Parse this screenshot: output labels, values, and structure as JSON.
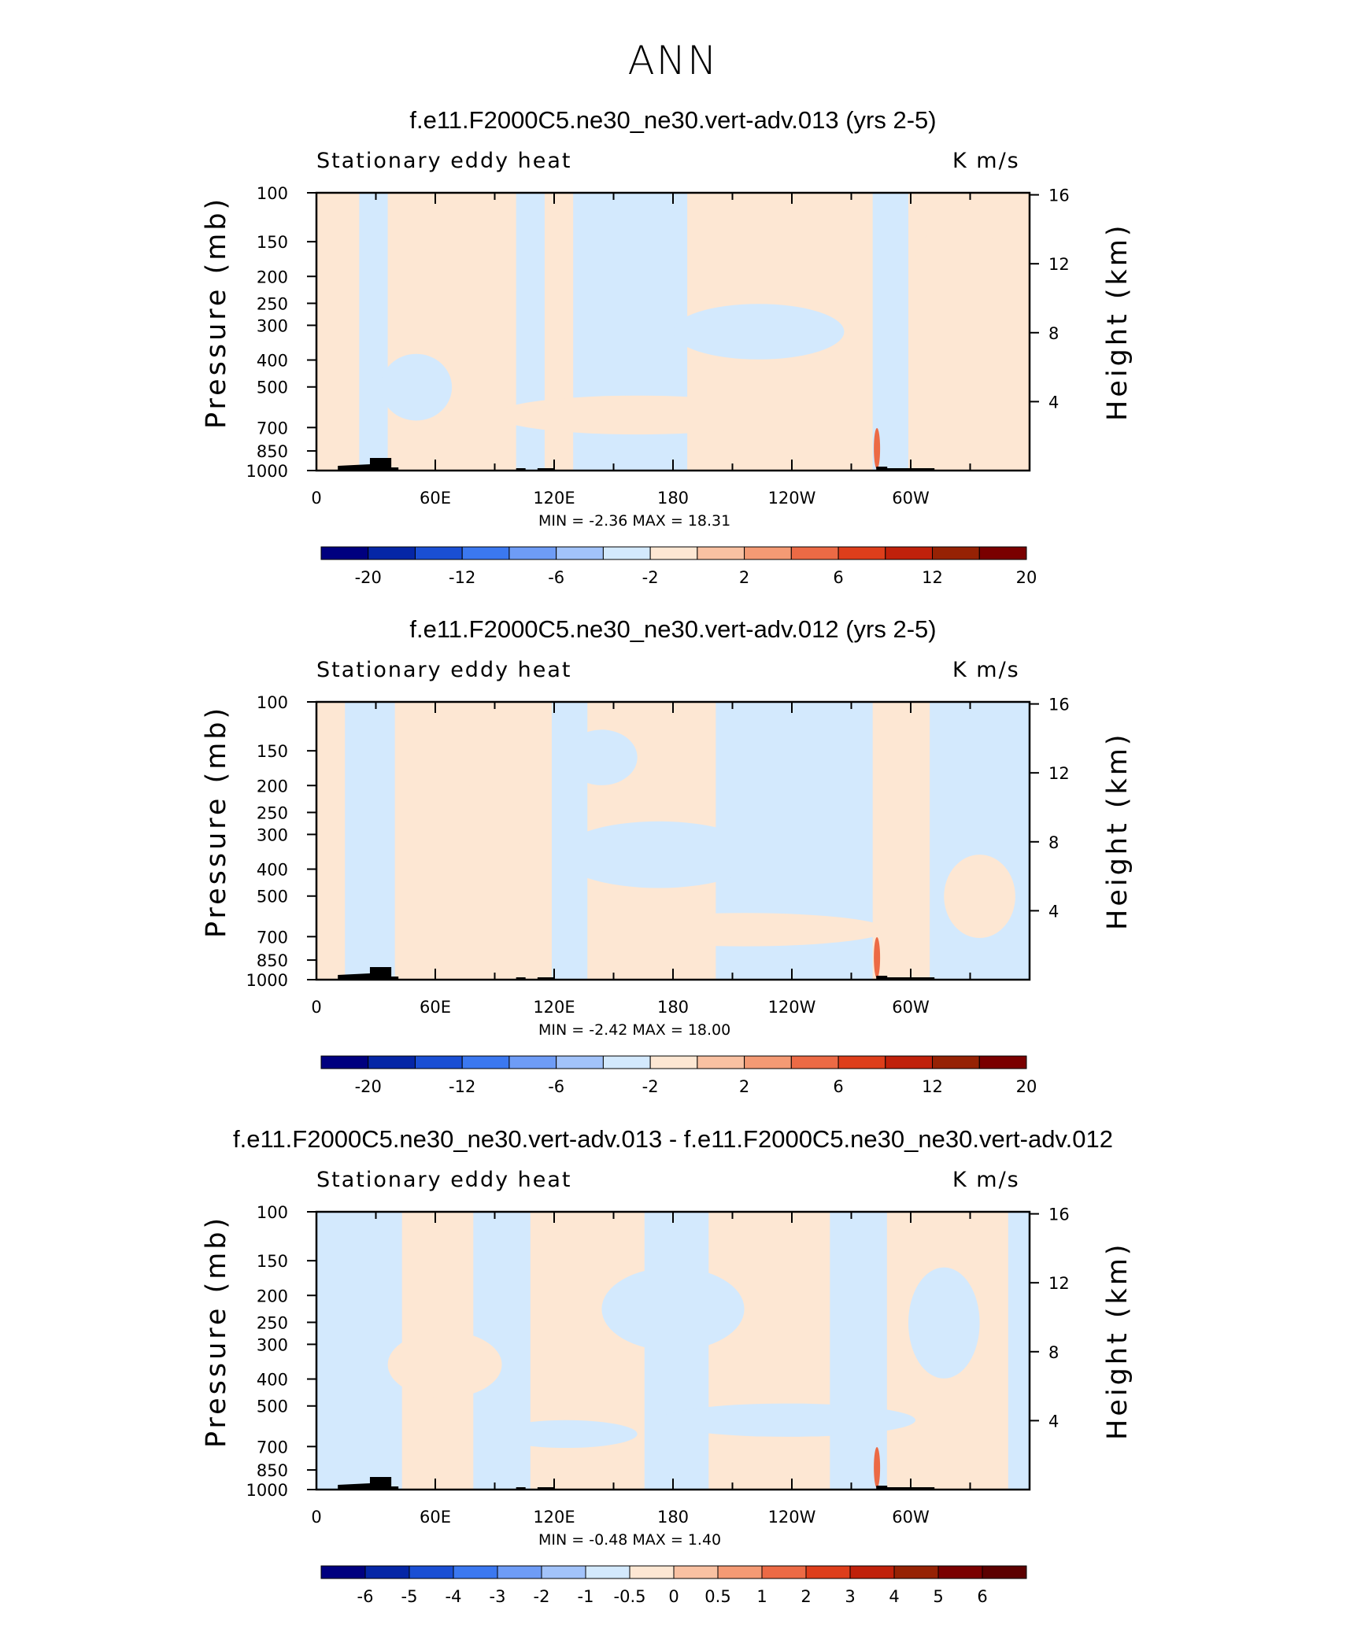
{
  "title": "ANN",
  "colors": {
    "light_blue": "#d3e9fd",
    "light_orange": "#fde7d3",
    "topography": "#000000",
    "frame": "#000000"
  },
  "chart_data": [
    {
      "type": "heatmap",
      "title": "f.e11.F2000C5.ne30_ne30.vert-adv.013 (yrs 2-5)",
      "subtitle_left": "Stationary eddy heat",
      "subtitle_right": "K m/s",
      "ylabel": "Pressure (mb)",
      "ylabel_right": "Height (km)",
      "y_ticks": [
        "100",
        "150",
        "200",
        "250",
        "300",
        "400",
        "500",
        "700",
        "850",
        "1000"
      ],
      "y_right_ticks": [
        "16",
        "12",
        "8",
        "4"
      ],
      "x_ticks": [
        "0",
        "60E",
        "120E",
        "180",
        "120W",
        "60W"
      ],
      "min_max_text": "MIN =    -2.36   MAX =    18.31",
      "min": -2.36,
      "max": 18.31,
      "colorbar_labels": [
        "-20",
        "-12",
        "-6",
        "-2",
        "2",
        "6",
        "12",
        "20"
      ],
      "colorbar_colors": [
        "#00007f",
        "#0526a6",
        "#1a4fd4",
        "#3b78f0",
        "#6e9cf6",
        "#a2c3fa",
        "#d3e9fd",
        "#fde7d3",
        "#f9c1a2",
        "#f49a74",
        "#ec6a45",
        "#de3e1b",
        "#c0210b",
        "#962204",
        "#7a0000"
      ]
    },
    {
      "type": "heatmap",
      "title": "f.e11.F2000C5.ne30_ne30.vert-adv.012 (yrs 2-5)",
      "subtitle_left": "Stationary eddy heat",
      "subtitle_right": "K m/s",
      "ylabel": "Pressure (mb)",
      "ylabel_right": "Height (km)",
      "y_ticks": [
        "100",
        "150",
        "200",
        "250",
        "300",
        "400",
        "500",
        "700",
        "850",
        "1000"
      ],
      "y_right_ticks": [
        "16",
        "12",
        "8",
        "4"
      ],
      "x_ticks": [
        "0",
        "60E",
        "120E",
        "180",
        "120W",
        "60W"
      ],
      "min_max_text": "MIN =    -2.42   MAX =    18.00",
      "min": -2.42,
      "max": 18.0,
      "colorbar_labels": [
        "-20",
        "-12",
        "-6",
        "-2",
        "2",
        "6",
        "12",
        "20"
      ],
      "colorbar_colors": [
        "#00007f",
        "#0526a6",
        "#1a4fd4",
        "#3b78f0",
        "#6e9cf6",
        "#a2c3fa",
        "#d3e9fd",
        "#fde7d3",
        "#f9c1a2",
        "#f49a74",
        "#ec6a45",
        "#de3e1b",
        "#c0210b",
        "#962204",
        "#7a0000"
      ]
    },
    {
      "type": "heatmap",
      "title": "f.e11.F2000C5.ne30_ne30.vert-adv.013 - f.e11.F2000C5.ne30_ne30.vert-adv.012",
      "subtitle_left": "Stationary eddy heat",
      "subtitle_right": "K m/s",
      "ylabel": "Pressure (mb)",
      "ylabel_right": "Height (km)",
      "y_ticks": [
        "100",
        "150",
        "200",
        "250",
        "300",
        "400",
        "500",
        "700",
        "850",
        "1000"
      ],
      "y_right_ticks": [
        "16",
        "12",
        "8",
        "4"
      ],
      "x_ticks": [
        "0",
        "60E",
        "120E",
        "180",
        "120W",
        "60W"
      ],
      "min_max_text": "MIN =    -0.48   MAX =     1.40",
      "min": -0.48,
      "max": 1.4,
      "colorbar_labels": [
        "-6",
        "-5",
        "-4",
        "-3",
        "-2",
        "-1",
        "-0.5",
        "0",
        "0.5",
        "1",
        "2",
        "3",
        "4",
        "5",
        "6"
      ],
      "colorbar_colors": [
        "#00007f",
        "#0526a6",
        "#1a4fd4",
        "#3b78f0",
        "#6e9cf6",
        "#a2c3fa",
        "#d3e9fd",
        "#fde7d3",
        "#f9c1a2",
        "#f49a74",
        "#ec6a45",
        "#de3e1b",
        "#c0210b",
        "#962204",
        "#7a0000",
        "#5c0000"
      ]
    }
  ]
}
